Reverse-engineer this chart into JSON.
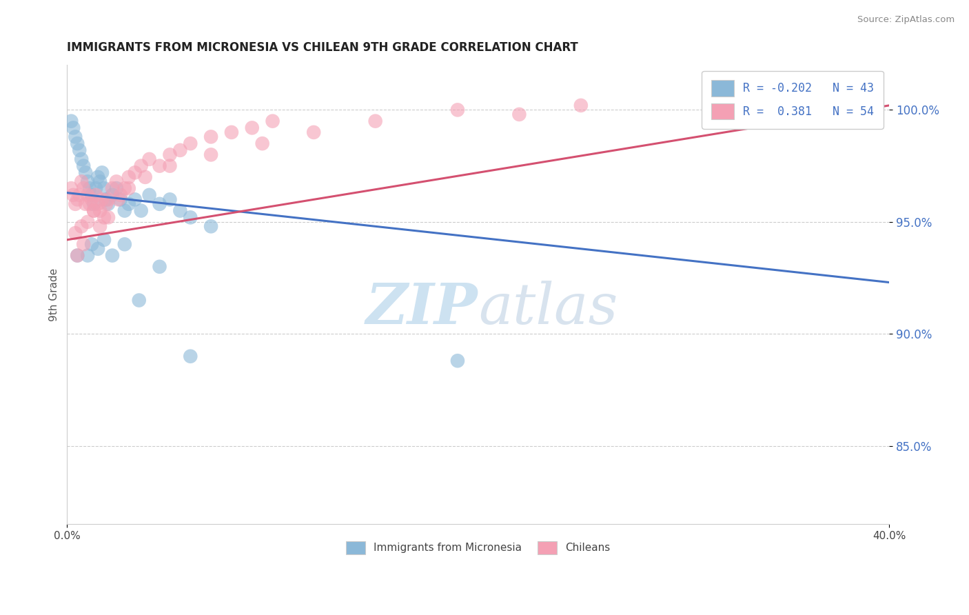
{
  "title": "IMMIGRANTS FROM MICRONESIA VS CHILEAN 9TH GRADE CORRELATION CHART",
  "source": "Source: ZipAtlas.com",
  "ylabel": "9th Grade",
  "y_ticks": [
    85.0,
    90.0,
    95.0,
    100.0
  ],
  "y_tick_labels": [
    "85.0%",
    "90.0%",
    "95.0%",
    "100.0%"
  ],
  "xlim": [
    0.0,
    40.0
  ],
  "ylim": [
    81.5,
    102.0
  ],
  "legend_blue_label": "R = -0.202   N = 43",
  "legend_pink_label": "R =  0.381   N = 54",
  "blue_color": "#8BB8D8",
  "pink_color": "#F4A0B4",
  "blue_line_color": "#4472C4",
  "pink_line_color": "#D45070",
  "blue_line_x0": 0.0,
  "blue_line_y0": 96.3,
  "blue_line_x1": 40.0,
  "blue_line_y1": 92.3,
  "pink_line_x0": 0.0,
  "pink_line_y0": 94.2,
  "pink_line_x1": 40.0,
  "pink_line_y1": 100.2,
  "blue_scatter_x": [
    0.2,
    0.3,
    0.4,
    0.5,
    0.6,
    0.7,
    0.8,
    0.9,
    1.0,
    1.1,
    1.2,
    1.3,
    1.4,
    1.5,
    1.6,
    1.7,
    1.8,
    1.9,
    2.0,
    2.2,
    2.4,
    2.6,
    2.8,
    3.0,
    3.3,
    3.6,
    4.0,
    4.5,
    5.0,
    5.5,
    6.0,
    7.0,
    1.0,
    1.2,
    1.5,
    1.8,
    2.2,
    2.8,
    3.5,
    4.5,
    6.0,
    19.0,
    0.5
  ],
  "blue_scatter_y": [
    99.5,
    99.2,
    98.8,
    98.5,
    98.2,
    97.8,
    97.5,
    97.2,
    96.8,
    96.5,
    96.2,
    95.8,
    96.5,
    97.0,
    96.8,
    97.2,
    96.5,
    96.0,
    95.8,
    96.2,
    96.5,
    96.0,
    95.5,
    95.8,
    96.0,
    95.5,
    96.2,
    95.8,
    96.0,
    95.5,
    95.2,
    94.8,
    93.5,
    94.0,
    93.8,
    94.2,
    93.5,
    94.0,
    91.5,
    93.0,
    89.0,
    88.8,
    93.5
  ],
  "pink_scatter_x": [
    0.2,
    0.3,
    0.4,
    0.5,
    0.6,
    0.7,
    0.8,
    0.9,
    1.0,
    1.1,
    1.2,
    1.3,
    1.4,
    1.5,
    1.6,
    1.7,
    1.8,
    1.9,
    2.0,
    2.2,
    2.4,
    2.6,
    2.8,
    3.0,
    3.3,
    3.6,
    4.0,
    4.5,
    5.0,
    5.5,
    6.0,
    7.0,
    8.0,
    9.0,
    10.0,
    0.4,
    0.7,
    1.0,
    1.3,
    1.6,
    2.0,
    2.5,
    3.0,
    3.8,
    5.0,
    7.0,
    9.5,
    12.0,
    15.0,
    19.0,
    22.0,
    25.0,
    0.5,
    0.8
  ],
  "pink_scatter_y": [
    96.5,
    96.2,
    95.8,
    96.0,
    96.2,
    96.8,
    96.5,
    95.8,
    96.2,
    95.8,
    96.0,
    95.5,
    96.2,
    95.8,
    95.5,
    96.0,
    95.2,
    95.8,
    96.0,
    96.5,
    96.8,
    96.2,
    96.5,
    97.0,
    97.2,
    97.5,
    97.8,
    97.5,
    98.0,
    98.2,
    98.5,
    98.8,
    99.0,
    99.2,
    99.5,
    94.5,
    94.8,
    95.0,
    95.5,
    94.8,
    95.2,
    96.0,
    96.5,
    97.0,
    97.5,
    98.0,
    98.5,
    99.0,
    99.5,
    100.0,
    99.8,
    100.2,
    93.5,
    94.0
  ]
}
